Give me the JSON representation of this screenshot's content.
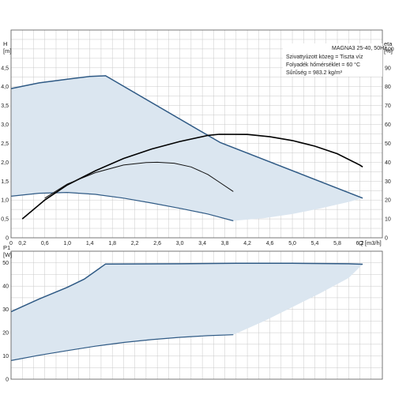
{
  "chart_data": [
    {
      "type": "line",
      "title": "",
      "xlabel": "Q [m3/h]",
      "ylabel": "H\n[m]",
      "y2label": "eta\n[%]",
      "xlim": [
        0,
        6.6
      ],
      "ylim": [
        0,
        5.5
      ],
      "y2lim": [
        0,
        110
      ],
      "grid": true,
      "x_ticks": [
        "0",
        "0,2",
        "0,6",
        "1,0",
        "1,4",
        "1,8",
        "2,2",
        "2,6",
        "3,0",
        "3,4",
        "3,8",
        "4,2",
        "4,6",
        "5,0",
        "5,4",
        "5,8",
        "6,2"
      ],
      "y_ticks": [
        "0",
        "0,5",
        "1,0",
        "1,5",
        "2,0",
        "2,5",
        "3,0",
        "3,5",
        "4,0",
        "4,5"
      ],
      "y2_ticks": [
        "0",
        "10",
        "20",
        "30",
        "40",
        "50",
        "60",
        "70",
        "80",
        "90",
        "100"
      ],
      "info": {
        "model": "MAGNA3 25-40, 50Hz",
        "liquid": "Szivattyúzott közeg = Tiszta víz",
        "temperature": "Folyadék hőmérséklet = 60 °C",
        "density": "Sűrűség = 983.2 kg/m³"
      },
      "envelope": {
        "fill": "#dbe6f0",
        "edge": "#2f5a85",
        "max_curve": [
          [
            0,
            3.95
          ],
          [
            0.5,
            4.1
          ],
          [
            1.0,
            4.2
          ],
          [
            1.4,
            4.27
          ],
          [
            1.68,
            4.29
          ],
          [
            3.72,
            2.52
          ],
          [
            6.25,
            1.05
          ]
        ],
        "min_curve": [
          [
            0,
            1.1
          ],
          [
            0.5,
            1.18
          ],
          [
            1.0,
            1.2
          ],
          [
            1.5,
            1.15
          ],
          [
            2.0,
            1.05
          ],
          [
            2.5,
            0.92
          ],
          [
            3.0,
            0.78
          ],
          [
            3.5,
            0.63
          ],
          [
            3.95,
            0.45
          ]
        ],
        "boundary": [
          [
            3.95,
            0.45
          ],
          [
            4.5,
            0.52
          ],
          [
            5.0,
            0.63
          ],
          [
            5.5,
            0.78
          ],
          [
            6.0,
            0.95
          ],
          [
            6.25,
            1.05
          ]
        ]
      },
      "series": [
        {
          "type": "efficiency",
          "color": "#000000",
          "width": 1.6,
          "values": [
            [
              0.2,
              10
            ],
            [
              0.6,
              20
            ],
            [
              1.0,
              28
            ],
            [
              1.5,
              35.5
            ],
            [
              2.0,
              42
            ],
            [
              2.5,
              47
            ],
            [
              3.0,
              51
            ],
            [
              3.5,
              54.2
            ],
            [
              3.7,
              54.8
            ],
            [
              4.2,
              54.7
            ],
            [
              4.6,
              53.5
            ],
            [
              5.0,
              51.5
            ],
            [
              5.4,
              48.5
            ],
            [
              5.8,
              44.5
            ],
            [
              6.2,
              38.5
            ],
            [
              6.25,
              37.5
            ]
          ]
        },
        {
          "type": "efficiency",
          "color": "#111111",
          "width": 1.0,
          "values": [
            [
              0.6,
              21
            ],
            [
              1.0,
              28.5
            ],
            [
              1.5,
              34.5
            ],
            [
              2.0,
              38.5
            ],
            [
              2.4,
              39.8
            ],
            [
              2.6,
              40
            ],
            [
              2.9,
              39.5
            ],
            [
              3.2,
              37.5
            ],
            [
              3.5,
              33.5
            ],
            [
              3.7,
              29.5
            ],
            [
              3.95,
              24.5
            ]
          ]
        }
      ]
    },
    {
      "type": "area",
      "title": "",
      "xlabel": "",
      "ylabel": "P1\n[W]",
      "xlim": [
        0,
        6.6
      ],
      "ylim": [
        0,
        55
      ],
      "grid": true,
      "y_ticks": [
        "0",
        "10",
        "20",
        "30",
        "40",
        "50"
      ],
      "envelope": {
        "fill": "#dbe6f0",
        "edge": "#2f5a85",
        "max_curve": [
          [
            0,
            29
          ],
          [
            0.5,
            34.5
          ],
          [
            1.0,
            39.5
          ],
          [
            1.3,
            43
          ],
          [
            1.68,
            49.5
          ],
          [
            3.0,
            49.6
          ],
          [
            4.0,
            49.8
          ],
          [
            5.0,
            49.8
          ],
          [
            6.0,
            49.6
          ],
          [
            6.25,
            49.4
          ]
        ],
        "min_curve": [
          [
            0,
            8
          ],
          [
            0.5,
            10.3
          ],
          [
            1.0,
            12.3
          ],
          [
            1.5,
            14.2
          ],
          [
            2.0,
            15.8
          ],
          [
            2.5,
            17
          ],
          [
            3.0,
            18
          ],
          [
            3.5,
            18.7
          ],
          [
            3.95,
            19.1
          ]
        ],
        "boundary": [
          [
            3.95,
            19.1
          ],
          [
            4.5,
            25
          ],
          [
            5.0,
            31
          ],
          [
            5.5,
            37
          ],
          [
            6.0,
            43.5
          ],
          [
            6.25,
            49.4
          ]
        ]
      }
    }
  ]
}
